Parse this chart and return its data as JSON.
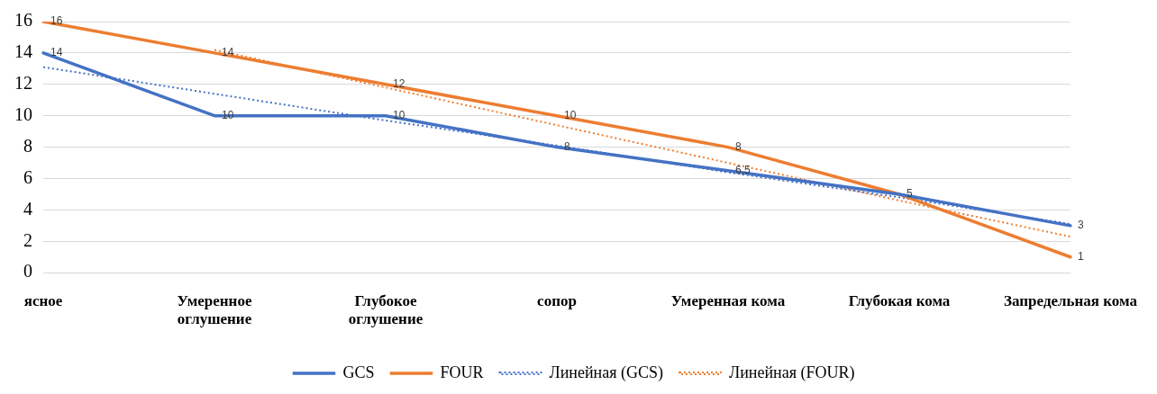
{
  "chart_data": {
    "type": "line",
    "categories": [
      "ясное",
      "Умеренное оглушение",
      "Глубокое оглушение",
      "сопор",
      "Умеренная кома",
      "Глубокая кома",
      "Запредельная кома"
    ],
    "series": [
      {
        "name": "GCS",
        "color": "#4472c4",
        "values": [
          14,
          10,
          10,
          8,
          6.5,
          5,
          3
        ],
        "value_labels": [
          "14",
          "10",
          "10",
          "8",
          "6,5",
          "5",
          "3"
        ]
      },
      {
        "name": "FOUR",
        "color": "#ed7d31",
        "values": [
          16,
          14,
          12,
          10,
          8,
          5,
          1
        ],
        "value_labels": [
          "16",
          "14",
          "12",
          "10",
          "8",
          null,
          "1"
        ]
      },
      {
        "name": "Линейная (GCS)",
        "color": "#4472c4",
        "line_style": "dotted",
        "values": [
          13.1,
          11.4,
          9.7,
          8.1,
          6.4,
          4.8,
          3.1
        ]
      },
      {
        "name": "Линейная (FOUR)",
        "color": "#ed7d31",
        "line_style": "dotted",
        "values": [
          null,
          14.2,
          11.8,
          9.4,
          7.0,
          4.6,
          2.3
        ]
      }
    ],
    "ylim": [
      0,
      16
    ],
    "yticks": [
      0,
      2,
      4,
      6,
      8,
      10,
      12,
      14,
      16
    ],
    "grid": "y",
    "legend": "bottom",
    "marker": "none"
  }
}
